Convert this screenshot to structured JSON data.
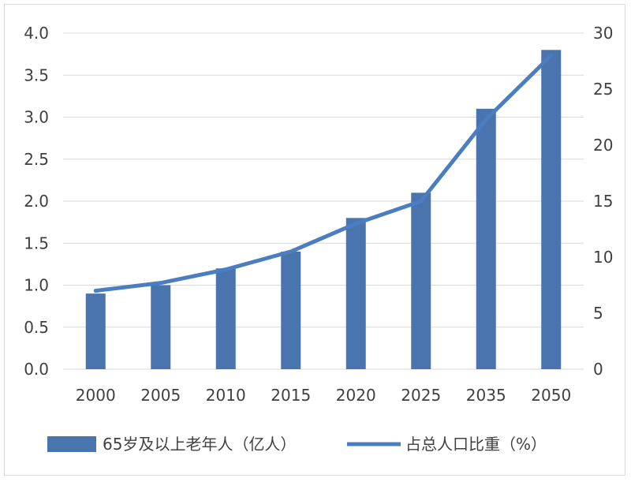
{
  "chart_data": {
    "type": "bar+line",
    "categories": [
      "2000",
      "2005",
      "2010",
      "2015",
      "2020",
      "2025",
      "2035",
      "2050"
    ],
    "series": [
      {
        "name": "65岁及以上老年人（亿人）",
        "type": "bar",
        "axis": "left",
        "values": [
          0.9,
          1.0,
          1.2,
          1.4,
          1.8,
          2.1,
          3.1,
          3.8
        ]
      },
      {
        "name": "占总人口比重（%）",
        "type": "line",
        "axis": "right",
        "values": [
          7.0,
          7.7,
          8.9,
          10.5,
          13.0,
          15.0,
          22.3,
          28.0
        ]
      }
    ],
    "y_left": {
      "ylim": [
        0,
        4.0
      ],
      "ticks": [
        "0.0",
        "0.5",
        "1.0",
        "1.5",
        "2.0",
        "2.5",
        "3.0",
        "3.5",
        "4.0"
      ]
    },
    "y_right": {
      "ylim": [
        0,
        30
      ],
      "ticks": [
        "0",
        "5",
        "10",
        "15",
        "20",
        "25",
        "30"
      ]
    },
    "grid": true,
    "legend_position": "bottom",
    "colors": {
      "bar": "#4a74ad",
      "line": "#4a7ec0",
      "grid": "#d9d9d9",
      "text": "#404040"
    }
  }
}
